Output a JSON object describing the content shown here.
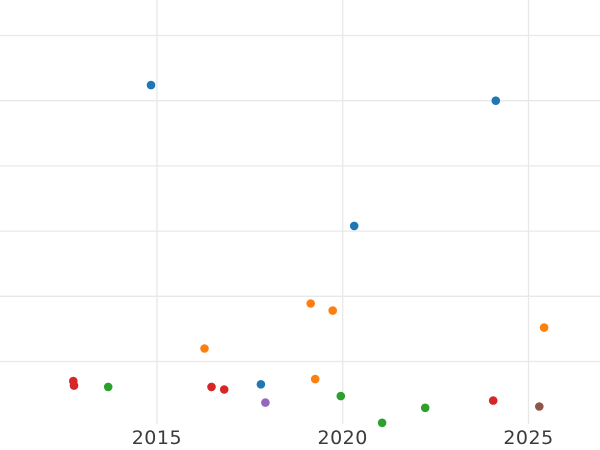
{
  "chart_data": {
    "type": "scatter",
    "title": "",
    "xlabel": "",
    "ylabel": "",
    "grid": true,
    "legend": "none",
    "background_color": "#ffffff",
    "gridline_color": "#e8e8e8",
    "tick_label_color": "#3b3b3b",
    "x_ticks": [
      {
        "year": 2015,
        "label": "2015"
      },
      {
        "year": 2020,
        "label": "2020"
      },
      {
        "year": 2025,
        "label": "2025"
      }
    ],
    "x_range_years": [
      2010.8,
      2026.9
    ],
    "y_axis_note": "no y-axis tick labels visible; y expressed in gridline units above the lowest visible gridline",
    "y_gridline_units": [
      0,
      1,
      2,
      3,
      4,
      5
    ],
    "y_range_units": [
      -0.96,
      5.54
    ],
    "series": [
      {
        "name": "blue",
        "color": "#1f77b4",
        "points": [
          {
            "x": 2014.84,
            "y": 4.24
          },
          {
            "x": 2020.31,
            "y": 2.08
          },
          {
            "x": 2017.8,
            "y": -0.35
          },
          {
            "x": 2024.12,
            "y": 4.0
          }
        ]
      },
      {
        "name": "orange",
        "color": "#ff7f0e",
        "points": [
          {
            "x": 2016.28,
            "y": 0.2
          },
          {
            "x": 2019.14,
            "y": 0.89
          },
          {
            "x": 2019.73,
            "y": 0.78
          },
          {
            "x": 2019.26,
            "y": -0.27
          },
          {
            "x": 2025.42,
            "y": 0.52
          }
        ]
      },
      {
        "name": "green",
        "color": "#2ca02c",
        "points": [
          {
            "x": 2013.69,
            "y": -0.39
          },
          {
            "x": 2019.95,
            "y": -0.53
          },
          {
            "x": 2021.06,
            "y": -0.94
          },
          {
            "x": 2022.22,
            "y": -0.71
          }
        ]
      },
      {
        "name": "red",
        "color": "#d62728",
        "points": [
          {
            "x": 2012.75,
            "y": -0.3
          },
          {
            "x": 2012.77,
            "y": -0.37
          },
          {
            "x": 2016.47,
            "y": -0.39
          },
          {
            "x": 2016.81,
            "y": -0.43
          },
          {
            "x": 2024.05,
            "y": -0.6
          }
        ]
      },
      {
        "name": "purple",
        "color": "#9467bd",
        "points": [
          {
            "x": 2017.92,
            "y": -0.63
          }
        ]
      },
      {
        "name": "brown",
        "color": "#8c564b",
        "points": [
          {
            "x": 2025.29,
            "y": -0.69
          }
        ]
      }
    ]
  }
}
